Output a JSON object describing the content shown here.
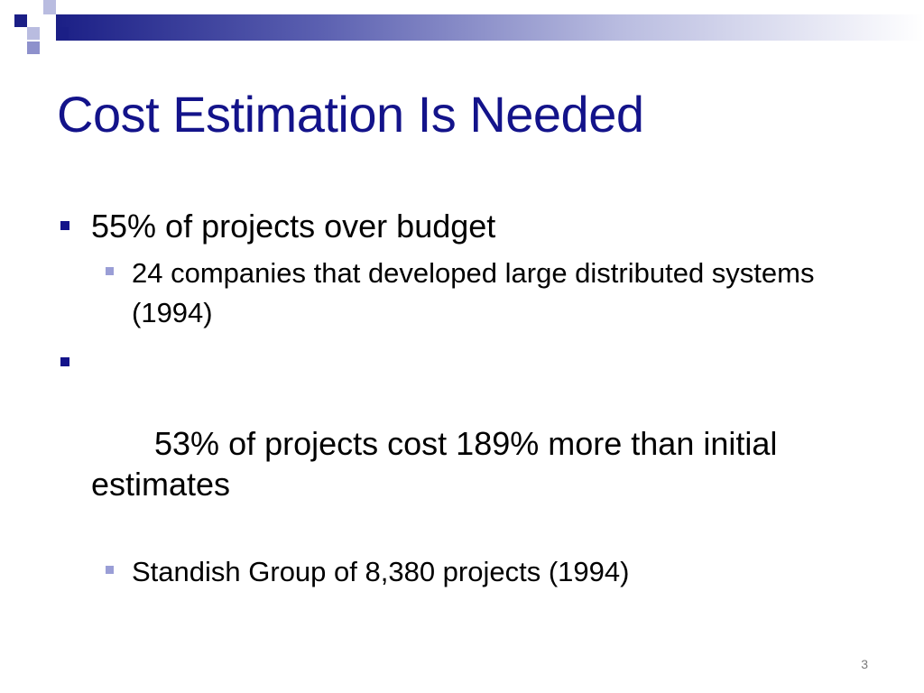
{
  "slide": {
    "title": "Cost Estimation Is Needed",
    "bullets": [
      {
        "text": "55% of projects over budget",
        "sub": [
          "24 companies that developed large distributed systems (1994)"
        ]
      },
      {
        "text": " 53% of projects cost 189% more than initial estimates",
        "sub": [
          "Standish Group of 8,380 projects (1994)"
        ]
      }
    ],
    "page_number": "3"
  },
  "colors": {
    "title": "#13138a",
    "bullet_primary": "#13138a",
    "bullet_secondary": "#9a9ed6",
    "header_dark": "#1b1f86"
  }
}
